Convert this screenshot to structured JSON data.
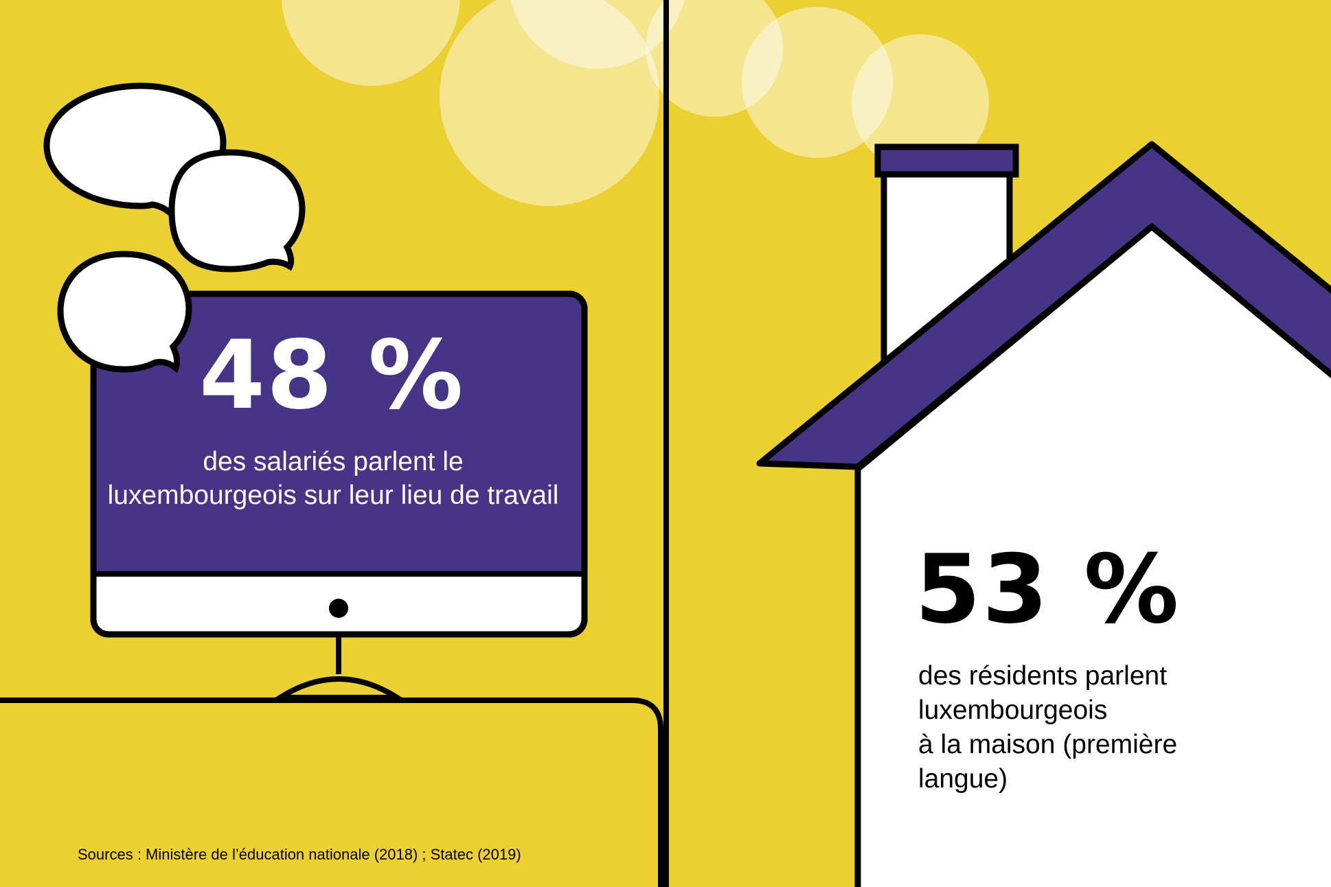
{
  "colors": {
    "background": "#ecd032",
    "screen_purple": "#463586",
    "outline": "#000000",
    "white": "#ffffff"
  },
  "left_panel": {
    "percentage": "48 %",
    "description": "des salariés parlent le luxembourgeois sur leur lieu de travail",
    "icons": [
      "speech-bubble-icon",
      "computer-monitor-icon"
    ]
  },
  "right_panel": {
    "percentage": "53 %",
    "description": "des résidents parlent\nluxembourgeois\nà la maison (première\nlangue)",
    "icons": [
      "house-icon",
      "chimney-smoke-icon"
    ]
  },
  "footer": {
    "sources": "Sources : Ministère de l’éducation nationale (2018) ; Statec (2019)"
  }
}
